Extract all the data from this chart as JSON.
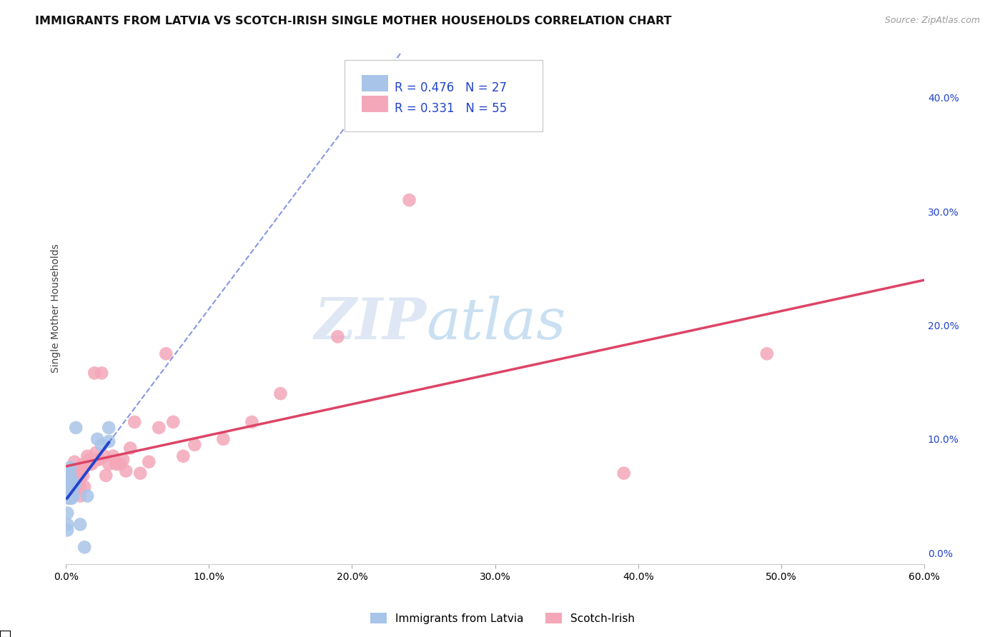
{
  "title": "IMMIGRANTS FROM LATVIA VS SCOTCH-IRISH SINGLE MOTHER HOUSEHOLDS CORRELATION CHART",
  "source": "Source: ZipAtlas.com",
  "ylabel": "Single Mother Households",
  "legend_label1": "Immigrants from Latvia",
  "legend_label2": "Scotch-Irish",
  "r1": 0.476,
  "n1": 27,
  "r2": 0.331,
  "n2": 55,
  "color1": "#a8c4e8",
  "color2": "#f4a7b9",
  "line_color1": "#2244cc",
  "line_color2": "#dd4466",
  "xlim": [
    0,
    0.6
  ],
  "ylim": [
    -0.01,
    0.44
  ],
  "xticks": [
    0.0,
    0.1,
    0.2,
    0.3,
    0.4,
    0.5,
    0.6
  ],
  "yticks_right": [
    0.0,
    0.1,
    0.2,
    0.3,
    0.4
  ],
  "blue_x": [
    0.001,
    0.001,
    0.001,
    0.002,
    0.002,
    0.002,
    0.002,
    0.003,
    0.003,
    0.003,
    0.003,
    0.003,
    0.004,
    0.004,
    0.004,
    0.005,
    0.005,
    0.005,
    0.006,
    0.007,
    0.01,
    0.013,
    0.015,
    0.022,
    0.025,
    0.03,
    0.03
  ],
  "blue_y": [
    0.035,
    0.025,
    0.02,
    0.07,
    0.063,
    0.055,
    0.048,
    0.075,
    0.068,
    0.062,
    0.055,
    0.048,
    0.062,
    0.055,
    0.048,
    0.062,
    0.058,
    0.05,
    0.06,
    0.11,
    0.025,
    0.005,
    0.05,
    0.1,
    0.095,
    0.11,
    0.098
  ],
  "pink_x": [
    0.002,
    0.002,
    0.003,
    0.003,
    0.004,
    0.004,
    0.005,
    0.005,
    0.006,
    0.007,
    0.007,
    0.007,
    0.008,
    0.008,
    0.009,
    0.01,
    0.01,
    0.01,
    0.011,
    0.012,
    0.012,
    0.013,
    0.015,
    0.016,
    0.017,
    0.018,
    0.02,
    0.021,
    0.022,
    0.023,
    0.025,
    0.027,
    0.028,
    0.03,
    0.033,
    0.035,
    0.038,
    0.04,
    0.042,
    0.045,
    0.048,
    0.052,
    0.058,
    0.065,
    0.07,
    0.075,
    0.082,
    0.09,
    0.11,
    0.13,
    0.15,
    0.19,
    0.24,
    0.39,
    0.49
  ],
  "pink_y": [
    0.065,
    0.055,
    0.07,
    0.06,
    0.065,
    0.055,
    0.072,
    0.062,
    0.08,
    0.068,
    0.062,
    0.055,
    0.07,
    0.062,
    0.07,
    0.065,
    0.058,
    0.05,
    0.072,
    0.078,
    0.068,
    0.058,
    0.085,
    0.082,
    0.078,
    0.078,
    0.158,
    0.088,
    0.082,
    0.082,
    0.158,
    0.085,
    0.068,
    0.078,
    0.085,
    0.078,
    0.078,
    0.082,
    0.072,
    0.092,
    0.115,
    0.07,
    0.08,
    0.11,
    0.175,
    0.115,
    0.085,
    0.095,
    0.1,
    0.115,
    0.14,
    0.19,
    0.31,
    0.07,
    0.175
  ],
  "watermark_zip": "ZIP",
  "watermark_atlas": "atlas",
  "background_color": "#ffffff",
  "grid_color": "#dde5f0",
  "title_fontsize": 11.5,
  "tick_fontsize": 10,
  "legend_fontsize": 12,
  "source_fontsize": 9
}
